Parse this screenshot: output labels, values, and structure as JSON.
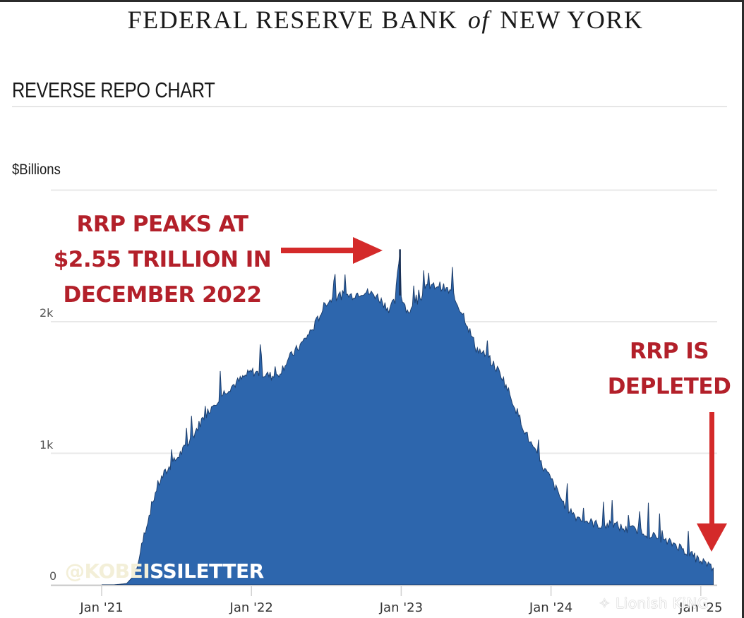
{
  "header": {
    "bank_name_left": "FEDERAL RESERVE BANK",
    "bank_name_of": "of",
    "bank_name_right": "NEW YORK",
    "chart_title": "REVERSE REPO CHART",
    "unit_label": "$Billions"
  },
  "annotations": {
    "peak_lines": [
      "RRP PEAKS AT",
      "$2.55 TRILLION IN",
      "DECEMBER 2022"
    ],
    "depleted_lines": [
      "RRP IS",
      "DEPLETED"
    ],
    "color": "#b3202a",
    "arrow_color": "#d42a2a"
  },
  "watermarks": {
    "left_faded": "@KOBEI",
    "left_solid": "SSILETTER",
    "right": "✧ Lionish KiNG"
  },
  "colors": {
    "area_fill": "#2d66ad",
    "area_edge": "#1d3f6e",
    "gridline": "#e8e8e8"
  },
  "chart_data": {
    "type": "area",
    "title": "REVERSE REPO CHART",
    "ylabel": "$Billions",
    "xlabel": "",
    "y_ticks": [
      {
        "label": "0",
        "value": 0
      },
      {
        "label": "1k",
        "value": 1000
      },
      {
        "label": "2k",
        "value": 2000
      }
    ],
    "x_ticks": [
      {
        "label": "Jan '21",
        "t": 0
      },
      {
        "label": "Jan '22",
        "t": 12
      },
      {
        "label": "Jan '23",
        "t": 24
      },
      {
        "label": "Jan '24",
        "t": 36
      },
      {
        "label": "Jan '25",
        "t": 48
      }
    ],
    "ylim": [
      0,
      3000
    ],
    "grid": true,
    "legend": "none",
    "x_unit": "months since Jan 2021",
    "x": [
      0,
      1,
      2,
      2.5,
      3,
      3.5,
      4,
      4.5,
      5,
      5.5,
      6,
      7,
      8,
      9,
      10,
      11,
      12,
      13,
      14,
      15,
      16,
      17,
      18,
      19,
      20,
      21,
      22,
      23,
      23.5,
      23.9,
      24,
      24.5,
      25,
      26,
      27,
      28,
      29,
      30,
      31,
      32,
      33,
      34,
      35,
      36,
      37,
      38,
      39,
      40,
      41,
      42,
      43,
      44,
      45,
      46,
      47,
      48,
      48.5,
      49
    ],
    "values": [
      0,
      0,
      10,
      60,
      200,
      420,
      600,
      760,
      840,
      900,
      960,
      1080,
      1250,
      1380,
      1480,
      1550,
      1620,
      1600,
      1580,
      1720,
      1830,
      1960,
      2150,
      2200,
      2200,
      2230,
      2200,
      2100,
      2150,
      2550,
      2200,
      2080,
      2100,
      2250,
      2280,
      2220,
      2050,
      1800,
      1720,
      1600,
      1380,
      1150,
      950,
      800,
      620,
      520,
      480,
      450,
      460,
      420,
      420,
      380,
      330,
      310,
      240,
      180,
      160,
      130
    ],
    "peak": {
      "label": "RRP peaks at $2.55 trillion in December 2022",
      "t": 23.9,
      "value": 2550
    }
  }
}
